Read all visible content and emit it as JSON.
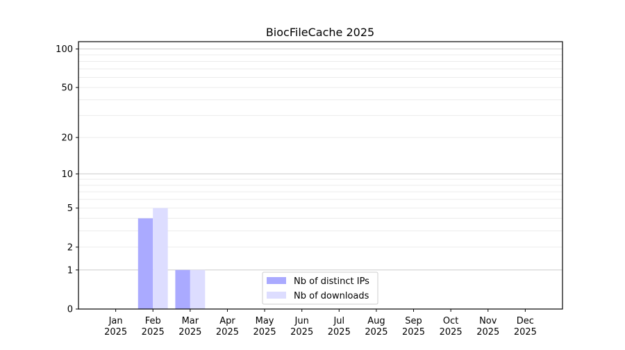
{
  "chart_data": {
    "type": "bar",
    "title": "BiocFileCache 2025",
    "xlabel": "",
    "ylabel": "",
    "categories": [
      "Jan\n2025",
      "Feb\n2025",
      "Mar\n2025",
      "Apr\n2025",
      "May\n2025",
      "Jun\n2025",
      "Jul\n2025",
      "Aug\n2025",
      "Sep\n2025",
      "Oct\n2025",
      "Nov\n2025",
      "Dec\n2025"
    ],
    "series": [
      {
        "name": "Nb of distinct IPs",
        "values": [
          0,
          4,
          1,
          0,
          0,
          0,
          0,
          0,
          0,
          0,
          0,
          0
        ],
        "color": "#aaaaff"
      },
      {
        "name": "Nb of downloads",
        "values": [
          0,
          5,
          1,
          0,
          0,
          0,
          0,
          0,
          0,
          0,
          0,
          0
        ],
        "color": "#ddddff"
      }
    ],
    "yscale": "log(1+y)",
    "yticks": [
      0,
      1,
      2,
      5,
      10,
      20,
      50,
      100
    ],
    "ylim": [
      0,
      114
    ],
    "grid": true,
    "legend": "lower center"
  }
}
